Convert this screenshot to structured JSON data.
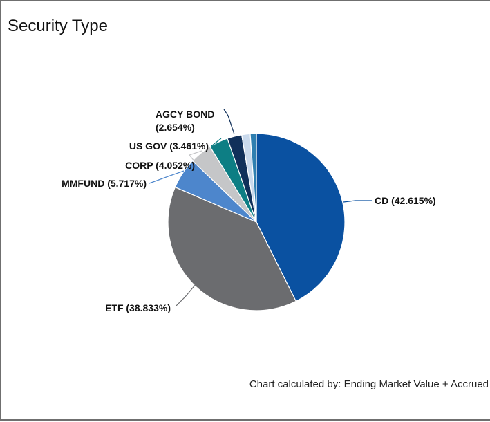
{
  "panel": {
    "title": "Security Type",
    "footnote": "Chart calculated by: Ending Market Value + Accrued"
  },
  "chart_data": {
    "type": "pie",
    "title": "Security Type",
    "unit": "%",
    "slices": [
      {
        "label": "CD (42.615%)",
        "name": "CD",
        "value": 42.615,
        "color": "#0a51a1",
        "line_color": "#0a51a1"
      },
      {
        "label": "ETF (38.833%)",
        "name": "ETF",
        "value": 38.833,
        "color": "#6b6c6f",
        "line_color": "#6b6c6f"
      },
      {
        "label": "MMFUND (5.717%)",
        "name": "MMFUND",
        "value": 5.717,
        "color": "#4d86cc",
        "line_color": "#4d86cc"
      },
      {
        "label": "CORP (4.052%)",
        "name": "CORP",
        "value": 4.052,
        "color": "#c5c6c8",
        "line_color": "#c5c6c8"
      },
      {
        "label": "US GOV (3.461%)",
        "name": "US GOV",
        "value": 3.461,
        "color": "#0d7e84",
        "line_color": "#0d7e84"
      },
      {
        "label": "AGCY BOND (2.654%)",
        "name": "AGCY BOND",
        "value": 2.654,
        "color": "#10305a",
        "line_color": "#10305a"
      },
      {
        "label": "",
        "name": "",
        "value": 1.55,
        "color": "#c9d9ec",
        "line_color": ""
      },
      {
        "label": "",
        "name": "",
        "value": 1.118,
        "color": "#2f7fb0",
        "line_color": ""
      }
    ],
    "start": "12 o'clock",
    "direction": "clockwise",
    "legend": "none (callout labels)"
  }
}
